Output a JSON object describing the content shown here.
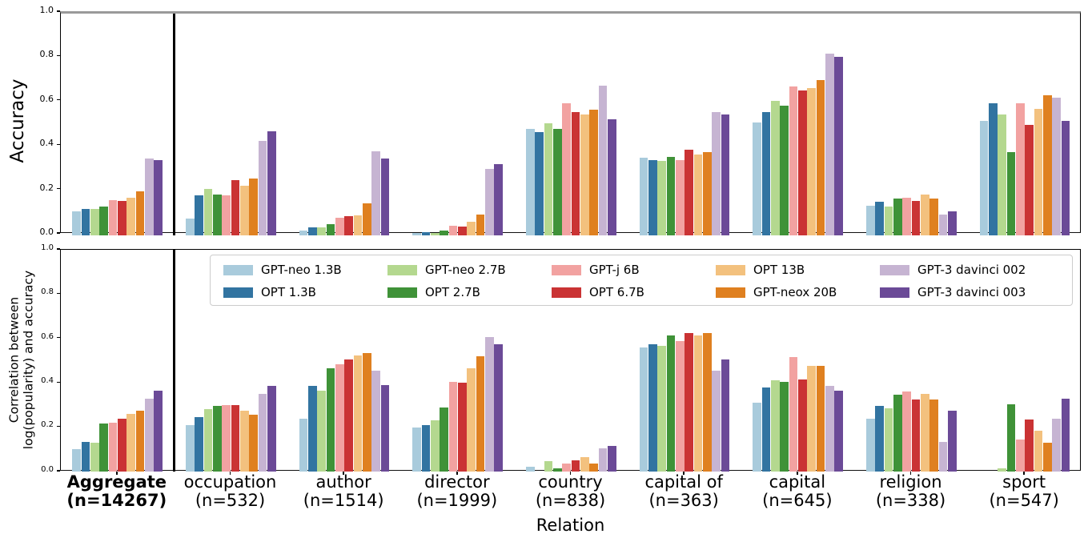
{
  "xlabel": "Relation",
  "y_ticks": [
    "0.0",
    "0.2",
    "0.4",
    "0.6",
    "0.8",
    "1.0"
  ],
  "series": [
    {
      "name": "GPT-neo 1.3B",
      "color": "#a9cbdc"
    },
    {
      "name": "OPT 1.3B",
      "color": "#3274a1"
    },
    {
      "name": "GPT-neo 2.7B",
      "color": "#b4d88f"
    },
    {
      "name": "OPT 2.7B",
      "color": "#3f9238"
    },
    {
      "name": "GPT-j 6B",
      "color": "#f2a2a1"
    },
    {
      "name": "OPT 6.7B",
      "color": "#ca3334"
    },
    {
      "name": "OPT 13B",
      "color": "#f3c17e"
    },
    {
      "name": "GPT-neox 20B",
      "color": "#df8020"
    },
    {
      "name": "GPT-3 davinci 002",
      "color": "#c6b4d2"
    },
    {
      "name": "GPT-3 davinci 003",
      "color": "#6b4a97"
    }
  ],
  "categories": [
    {
      "label": "Aggregate",
      "count": "(n=14267)",
      "bold": true
    },
    {
      "label": "occupation",
      "count": "(n=532)",
      "bold": false
    },
    {
      "label": "author",
      "count": "(n=1514)",
      "bold": false
    },
    {
      "label": "director",
      "count": "(n=1999)",
      "bold": false
    },
    {
      "label": "country",
      "count": "(n=838)",
      "bold": false
    },
    {
      "label": "capital of",
      "count": "(n=363)",
      "bold": false
    },
    {
      "label": "capital",
      "count": "(n=645)",
      "bold": false
    },
    {
      "label": "religion",
      "count": "(n=338)",
      "bold": false
    },
    {
      "label": "sport",
      "count": "(n=547)",
      "bold": false
    }
  ],
  "legend_columns": [
    [
      "GPT-neo 1.3B",
      "OPT 1.3B"
    ],
    [
      "GPT-neo 2.7B",
      "OPT 2.7B"
    ],
    [
      "GPT-j 6B",
      "OPT 6.7B"
    ],
    [
      "OPT 13B",
      "GPT-neox 20B"
    ],
    [
      "GPT-3 davinci 002",
      "GPT-3 davinci 003"
    ]
  ],
  "chart_data": [
    {
      "type": "bar",
      "ylabel": "Accuracy",
      "ylim": [
        0,
        1
      ],
      "yticks": [
        0.0,
        0.2,
        0.4,
        0.6,
        0.8,
        1.0
      ],
      "grid": false,
      "categories": [
        "Aggregate (n=14267)",
        "occupation (n=532)",
        "author (n=1514)",
        "director (n=1999)",
        "country (n=838)",
        "capital of (n=363)",
        "capital (n=645)",
        "religion (n=338)",
        "sport (n=547)"
      ],
      "series": [
        {
          "name": "GPT-neo 1.3B",
          "values": [
            0.11,
            0.075,
            0.02,
            0.01,
            0.48,
            0.35,
            0.51,
            0.135,
            0.515
          ]
        },
        {
          "name": "OPT 1.3B",
          "values": [
            0.12,
            0.18,
            0.035,
            0.015,
            0.465,
            0.34,
            0.555,
            0.15,
            0.595
          ]
        },
        {
          "name": "GPT-neo 2.7B",
          "values": [
            0.12,
            0.21,
            0.035,
            0.012,
            0.505,
            0.335,
            0.605,
            0.13,
            0.545
          ]
        },
        {
          "name": "OPT 2.7B",
          "values": [
            0.13,
            0.185,
            0.05,
            0.02,
            0.48,
            0.355,
            0.585,
            0.165,
            0.375
          ]
        },
        {
          "name": "GPT-j 6B",
          "values": [
            0.16,
            0.18,
            0.08,
            0.045,
            0.595,
            0.34,
            0.67,
            0.17,
            0.595
          ]
        },
        {
          "name": "OPT 6.7B",
          "values": [
            0.155,
            0.25,
            0.085,
            0.04,
            0.555,
            0.385,
            0.655,
            0.155,
            0.5
          ]
        },
        {
          "name": "OPT 13B",
          "values": [
            0.17,
            0.225,
            0.09,
            0.06,
            0.545,
            0.365,
            0.665,
            0.185,
            0.57
          ]
        },
        {
          "name": "GPT-neox 20B",
          "values": [
            0.2,
            0.255,
            0.145,
            0.095,
            0.565,
            0.375,
            0.7,
            0.165,
            0.63
          ]
        },
        {
          "name": "GPT-3 davinci 002",
          "values": [
            0.345,
            0.425,
            0.38,
            0.3,
            0.675,
            0.555,
            0.82,
            0.095,
            0.62
          ]
        },
        {
          "name": "GPT-3 davinci 003",
          "values": [
            0.34,
            0.47,
            0.345,
            0.32,
            0.525,
            0.545,
            0.805,
            0.11,
            0.515
          ]
        }
      ]
    },
    {
      "type": "bar",
      "ylabel": "Correlation between log(popularity) and accuracy",
      "ylabel_lines": [
        "Correlation between",
        "log(popularity) and accuracy"
      ],
      "ylim": [
        0,
        1
      ],
      "yticks": [
        0.0,
        0.2,
        0.4,
        0.6,
        0.8,
        1.0
      ],
      "grid": false,
      "legend_position": "upper center",
      "categories": [
        "Aggregate (n=14267)",
        "occupation (n=532)",
        "author (n=1514)",
        "director (n=1999)",
        "country (n=838)",
        "capital of (n=363)",
        "capital (n=645)",
        "religion (n=338)",
        "sport (n=547)"
      ],
      "series": [
        {
          "name": "GPT-neo 1.3B",
          "values": [
            0.1,
            0.21,
            0.24,
            0.2,
            0.02,
            0.56,
            0.31,
            0.24,
            0.0
          ]
        },
        {
          "name": "OPT 1.3B",
          "values": [
            0.135,
            0.245,
            0.385,
            0.21,
            0.0,
            0.575,
            0.38,
            0.295,
            0.0
          ]
        },
        {
          "name": "GPT-neo 2.7B",
          "values": [
            0.13,
            0.28,
            0.365,
            0.23,
            0.048,
            0.565,
            0.41,
            0.285,
            0.015
          ]
        },
        {
          "name": "OPT 2.7B",
          "values": [
            0.215,
            0.295,
            0.465,
            0.29,
            0.015,
            0.615,
            0.405,
            0.345,
            0.305
          ]
        },
        {
          "name": "GPT-j 6B",
          "values": [
            0.22,
            0.3,
            0.485,
            0.405,
            0.035,
            0.59,
            0.515,
            0.36,
            0.145
          ]
        },
        {
          "name": "OPT 6.7B",
          "values": [
            0.24,
            0.3,
            0.505,
            0.4,
            0.05,
            0.625,
            0.415,
            0.325,
            0.235
          ]
        },
        {
          "name": "OPT 13B",
          "values": [
            0.26,
            0.275,
            0.525,
            0.465,
            0.065,
            0.615,
            0.475,
            0.35,
            0.185
          ]
        },
        {
          "name": "GPT-neox 20B",
          "values": [
            0.275,
            0.255,
            0.535,
            0.52,
            0.036,
            0.625,
            0.475,
            0.325,
            0.13
          ]
        },
        {
          "name": "GPT-3 davinci 002",
          "values": [
            0.33,
            0.35,
            0.455,
            0.605,
            0.105,
            0.455,
            0.385,
            0.135,
            0.24
          ]
        },
        {
          "name": "GPT-3 davinci 003",
          "values": [
            0.365,
            0.385,
            0.39,
            0.575,
            0.115,
            0.505,
            0.365,
            0.275,
            0.33
          ]
        }
      ]
    }
  ]
}
